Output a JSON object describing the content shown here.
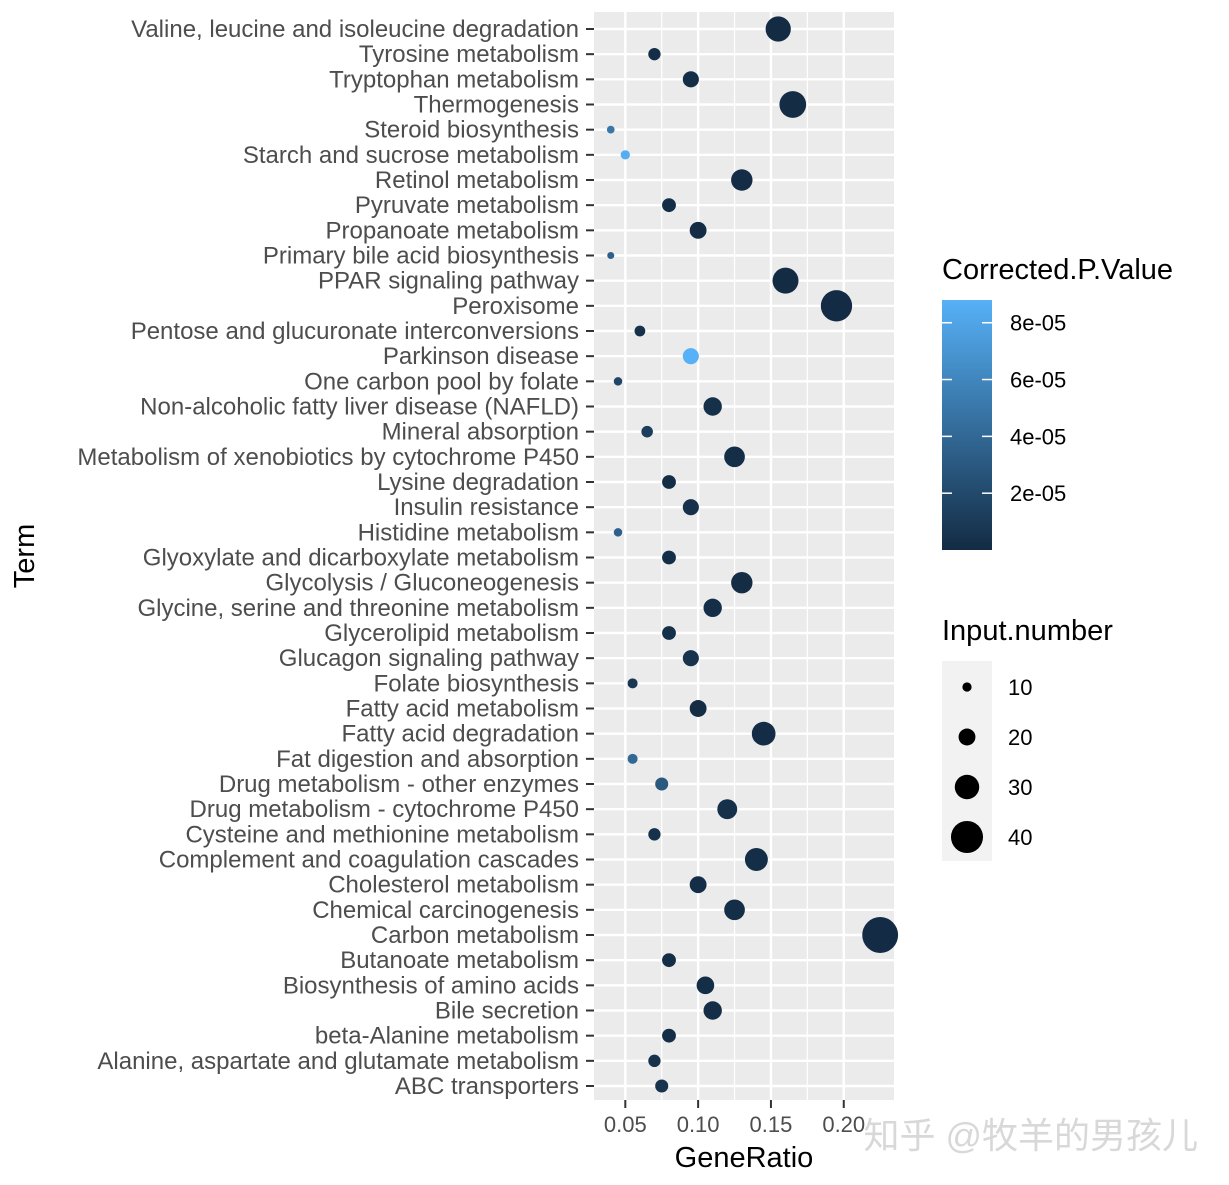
{
  "watermark": "知乎 @牧羊的男孩儿",
  "chart_data": {
    "type": "scatter",
    "xlabel": "GeneRatio",
    "ylabel": "Term",
    "xlim": [
      0.0285,
      0.2345
    ],
    "xticks": [
      0.05,
      0.1,
      0.15,
      0.2
    ],
    "xtick_labels": [
      "0.05",
      "0.10",
      "0.15",
      "0.20"
    ],
    "grid": true,
    "colors": {
      "panel": "#ebebeb",
      "grid": "#ffffff",
      "low": "#132b43",
      "high": "#56b1f7"
    },
    "color_legend": {
      "title": "Corrected.P.Value",
      "range": [
        0,
        8.8e-05
      ],
      "ticks": [
        2e-05,
        4e-05,
        6e-05,
        8e-05
      ],
      "tick_labels": [
        "2e-05",
        "4e-05",
        "6e-05",
        "8e-05"
      ]
    },
    "size_legend": {
      "title": "Input.number",
      "values": [
        10,
        20,
        30,
        40
      ],
      "labels": [
        "10",
        "20",
        "30",
        "40"
      ]
    },
    "points": [
      {
        "term": "Valine, leucine and isoleucine degradation",
        "x": 0.155,
        "count": 31,
        "p": 5e-07
      },
      {
        "term": "Tyrosine metabolism",
        "x": 0.07,
        "count": 14,
        "p": 2e-06
      },
      {
        "term": "Tryptophan metabolism",
        "x": 0.095,
        "count": 19,
        "p": 2e-06
      },
      {
        "term": "Thermogenesis",
        "x": 0.165,
        "count": 33,
        "p": 1e-06
      },
      {
        "term": "Steroid biosynthesis",
        "x": 0.04,
        "count": 8,
        "p": 5e-05
      },
      {
        "term": "Starch and sucrose metabolism",
        "x": 0.05,
        "count": 10,
        "p": 8.5e-05
      },
      {
        "term": "Retinol metabolism",
        "x": 0.13,
        "count": 26,
        "p": 8e-07
      },
      {
        "term": "Pyruvate metabolism",
        "x": 0.08,
        "count": 16,
        "p": 2e-06
      },
      {
        "term": "Propanoate metabolism",
        "x": 0.1,
        "count": 20,
        "p": 1e-06
      },
      {
        "term": "Primary bile acid biosynthesis",
        "x": 0.04,
        "count": 7,
        "p": 3.5e-05
      },
      {
        "term": "PPAR signaling pathway",
        "x": 0.16,
        "count": 32,
        "p": 5e-07
      },
      {
        "term": "Peroxisome",
        "x": 0.195,
        "count": 39,
        "p": 3e-07
      },
      {
        "term": "Pentose and glucuronate interconversions",
        "x": 0.06,
        "count": 12,
        "p": 4e-06
      },
      {
        "term": "Parkinson disease",
        "x": 0.095,
        "count": 19,
        "p": 8.8e-05
      },
      {
        "term": "One carbon pool by folate",
        "x": 0.045,
        "count": 9,
        "p": 1.8e-05
      },
      {
        "term": "Non-alcoholic fatty liver disease (NAFLD)",
        "x": 0.11,
        "count": 22,
        "p": 3e-06
      },
      {
        "term": "Mineral absorption",
        "x": 0.065,
        "count": 13,
        "p": 1.2e-05
      },
      {
        "term": "Metabolism of xenobiotics by cytochrome P450",
        "x": 0.125,
        "count": 25,
        "p": 2e-06
      },
      {
        "term": "Lysine degradation",
        "x": 0.08,
        "count": 16,
        "p": 2e-06
      },
      {
        "term": "Insulin resistance",
        "x": 0.095,
        "count": 19,
        "p": 4e-06
      },
      {
        "term": "Histidine metabolism",
        "x": 0.045,
        "count": 9,
        "p": 3.5e-05
      },
      {
        "term": "Glyoxylate and dicarboxylate metabolism",
        "x": 0.08,
        "count": 16,
        "p": 2e-06
      },
      {
        "term": "Glycolysis / Gluconeogenesis",
        "x": 0.13,
        "count": 26,
        "p": 1e-06
      },
      {
        "term": "Glycine, serine and threonine metabolism",
        "x": 0.11,
        "count": 22,
        "p": 2e-06
      },
      {
        "term": "Glycerolipid metabolism",
        "x": 0.08,
        "count": 16,
        "p": 3e-06
      },
      {
        "term": "Glucagon signaling pathway",
        "x": 0.095,
        "count": 19,
        "p": 5e-06
      },
      {
        "term": "Folate biosynthesis",
        "x": 0.055,
        "count": 11,
        "p": 8e-06
      },
      {
        "term": "Fatty acid metabolism",
        "x": 0.1,
        "count": 20,
        "p": 1e-06
      },
      {
        "term": "Fatty acid degradation",
        "x": 0.145,
        "count": 29,
        "p": 8e-07
      },
      {
        "term": "Fat digestion and absorption",
        "x": 0.055,
        "count": 11,
        "p": 4e-05
      },
      {
        "term": "Drug metabolism - other enzymes",
        "x": 0.075,
        "count": 15,
        "p": 3e-05
      },
      {
        "term": "Drug metabolism - cytochrome P450",
        "x": 0.12,
        "count": 24,
        "p": 3e-06
      },
      {
        "term": "Cysteine and methionine metabolism",
        "x": 0.07,
        "count": 14,
        "p": 4e-06
      },
      {
        "term": "Complement and coagulation cascades",
        "x": 0.14,
        "count": 28,
        "p": 2e-06
      },
      {
        "term": "Cholesterol metabolism",
        "x": 0.1,
        "count": 20,
        "p": 2e-06
      },
      {
        "term": "Chemical carcinogenesis",
        "x": 0.125,
        "count": 25,
        "p": 2e-06
      },
      {
        "term": "Carbon metabolism",
        "x": 0.225,
        "count": 45,
        "p": 3e-07
      },
      {
        "term": "Butanoate metabolism",
        "x": 0.08,
        "count": 16,
        "p": 2e-06
      },
      {
        "term": "Biosynthesis of amino acids",
        "x": 0.105,
        "count": 21,
        "p": 2e-06
      },
      {
        "term": "Bile secretion",
        "x": 0.11,
        "count": 22,
        "p": 2e-06
      },
      {
        "term": "beta-Alanine metabolism",
        "x": 0.08,
        "count": 16,
        "p": 2e-06
      },
      {
        "term": "Alanine, aspartate and glutamate metabolism",
        "x": 0.07,
        "count": 14,
        "p": 4e-06
      },
      {
        "term": "ABC transporters",
        "x": 0.075,
        "count": 15,
        "p": 5e-06
      }
    ]
  }
}
